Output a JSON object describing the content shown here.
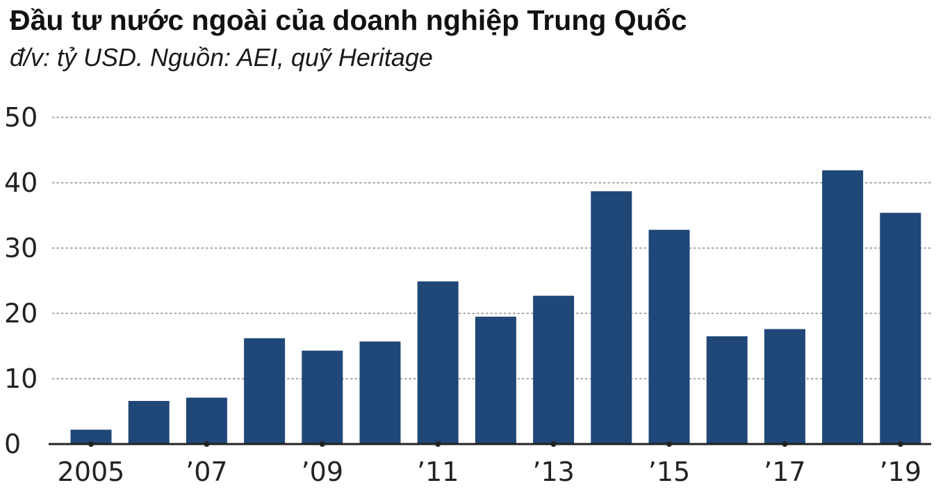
{
  "header": {
    "title": "Đầu tư nước ngoài của doanh nghiệp Trung Quốc",
    "subtitle": "đ/v: tỷ USD. Nguồn: AEI, quỹ Heritage"
  },
  "chart_data": {
    "type": "bar",
    "title": "Đầu tư nước ngoài của doanh nghiệp Trung Quốc",
    "subtitle": "đ/v: tỷ USD. Nguồn: AEI, quỹ Heritage",
    "xlabel": "",
    "ylabel": "",
    "categories": [
      "2005",
      "2006",
      "2007",
      "2008",
      "2009",
      "2010",
      "2011",
      "2012",
      "2013",
      "2014",
      "2015",
      "2016",
      "2017",
      "2018",
      "2019"
    ],
    "values": [
      2.2,
      6.6,
      7.1,
      16.2,
      14.3,
      15.7,
      24.9,
      19.5,
      22.7,
      38.7,
      32.8,
      16.5,
      17.6,
      41.9,
      35.4
    ],
    "x_tick_labels": [
      "2005",
      "",
      "’07",
      "",
      "’09",
      "",
      "’11",
      "",
      "’13",
      "",
      "’15",
      "",
      "’17",
      "",
      "’19"
    ],
    "y_ticks": [
      0,
      10,
      20,
      30,
      40,
      50
    ],
    "ylim": [
      0,
      50
    ],
    "grid": "dotted-horizontal",
    "legend": "none",
    "bar_color": "#1f4777",
    "grid_color": "#aaaaaa",
    "axis_color": "#222222"
  }
}
